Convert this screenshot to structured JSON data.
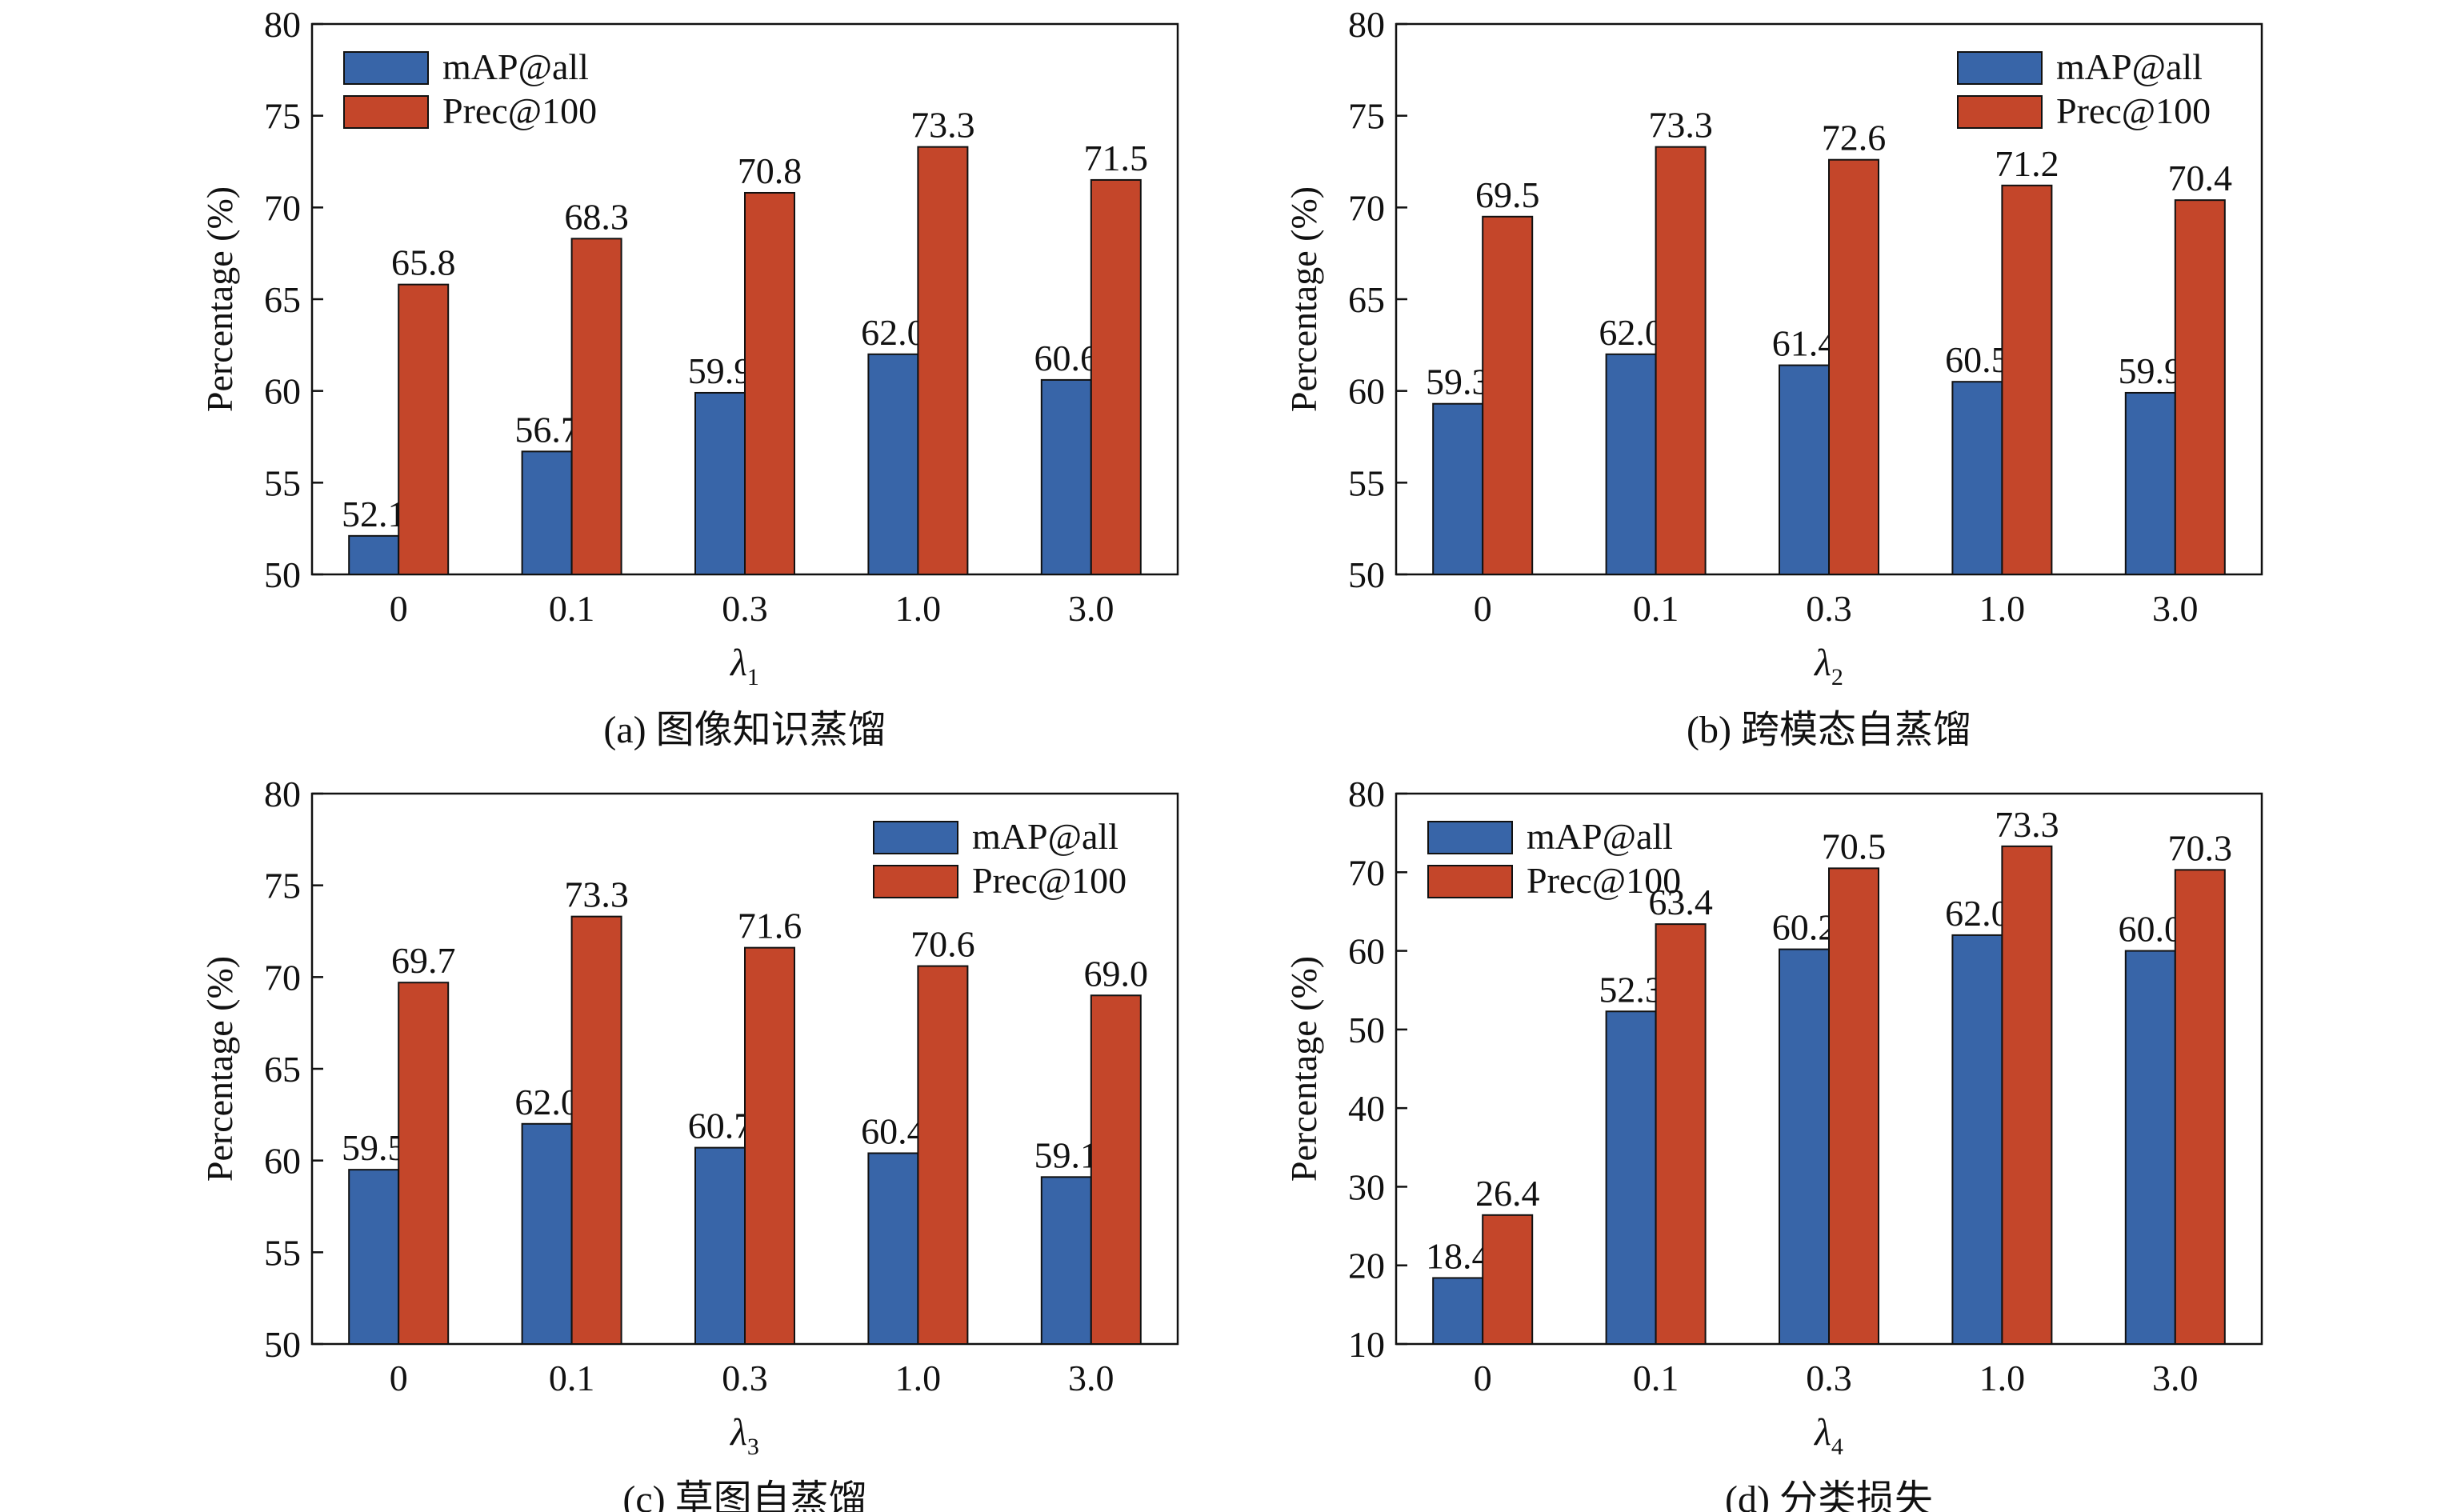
{
  "colors": {
    "map": "#3865a8",
    "prec": "#c4462a",
    "axis": "#111111"
  },
  "chart_data": [
    {
      "type": "bar",
      "caption": "(a) 图像知识蒸馏",
      "xlabel": "λ",
      "xlabel_sub": "1",
      "ylabel": "Percentage (%)",
      "categories": [
        "0",
        "0.1",
        "0.3",
        "1.0",
        "3.0"
      ],
      "ylim": [
        50,
        80
      ],
      "yticks": [
        50,
        55,
        60,
        65,
        70,
        75,
        80
      ],
      "legend_position": "top-left",
      "series": [
        {
          "name": "mAP@all",
          "values": [
            52.1,
            56.7,
            59.9,
            62.0,
            60.6
          ],
          "labels": [
            "52.1",
            "56.7",
            "59.9",
            "62.0",
            "60.6"
          ]
        },
        {
          "name": "Prec@100",
          "values": [
            65.8,
            68.3,
            70.8,
            73.3,
            71.5
          ],
          "labels": [
            "65.8",
            "68.3",
            "70.8",
            "73.3",
            "71.5"
          ]
        }
      ]
    },
    {
      "type": "bar",
      "caption": "(b) 跨模态自蒸馏",
      "xlabel": "λ",
      "xlabel_sub": "2",
      "ylabel": "Percentage (%)",
      "categories": [
        "0",
        "0.1",
        "0.3",
        "1.0",
        "3.0"
      ],
      "ylim": [
        50,
        80
      ],
      "yticks": [
        50,
        55,
        60,
        65,
        70,
        75,
        80
      ],
      "legend_position": "top-right",
      "series": [
        {
          "name": "mAP@all",
          "values": [
            59.3,
            62.0,
            61.4,
            60.5,
            59.9
          ],
          "labels": [
            "59.3",
            "62.0",
            "61.4",
            "60.5",
            "59.9"
          ]
        },
        {
          "name": "Prec@100",
          "values": [
            69.5,
            73.3,
            72.6,
            71.2,
            70.4
          ],
          "labels": [
            "69.5",
            "73.3",
            "72.6",
            "71.2",
            "70.4"
          ]
        }
      ]
    },
    {
      "type": "bar",
      "caption": "(c) 草图自蒸馏",
      "xlabel": "λ",
      "xlabel_sub": "3",
      "ylabel": "Percentage (%)",
      "categories": [
        "0",
        "0.1",
        "0.3",
        "1.0",
        "3.0"
      ],
      "ylim": [
        50,
        80
      ],
      "yticks": [
        50,
        55,
        60,
        65,
        70,
        75,
        80
      ],
      "legend_position": "top-right",
      "series": [
        {
          "name": "mAP@all",
          "values": [
            59.5,
            62.0,
            60.7,
            60.4,
            59.1
          ],
          "labels": [
            "59.5",
            "62.0",
            "60.7",
            "60.4",
            "59.1"
          ]
        },
        {
          "name": "Prec@100",
          "values": [
            69.7,
            73.3,
            71.6,
            70.6,
            69.0
          ],
          "labels": [
            "69.7",
            "73.3",
            "71.6",
            "70.6",
            "69.0"
          ]
        }
      ]
    },
    {
      "type": "bar",
      "caption": "(d) 分类损失",
      "xlabel": "λ",
      "xlabel_sub": "4",
      "ylabel": "Percentage (%)",
      "categories": [
        "0",
        "0.1",
        "0.3",
        "1.0",
        "3.0"
      ],
      "ylim": [
        10,
        80
      ],
      "yticks": [
        10,
        20,
        30,
        40,
        50,
        60,
        70,
        80
      ],
      "legend_position": "top-left",
      "series": [
        {
          "name": "mAP@all",
          "values": [
            18.4,
            52.3,
            60.2,
            62.0,
            60.0
          ],
          "labels": [
            "18.4",
            "52.3",
            "60.2",
            "62.0",
            "60.0"
          ]
        },
        {
          "name": "Prec@100",
          "values": [
            26.4,
            63.4,
            70.5,
            73.3,
            70.3
          ],
          "labels": [
            "26.4",
            "63.4",
            "70.5",
            "73.3",
            "70.3"
          ]
        }
      ]
    }
  ]
}
